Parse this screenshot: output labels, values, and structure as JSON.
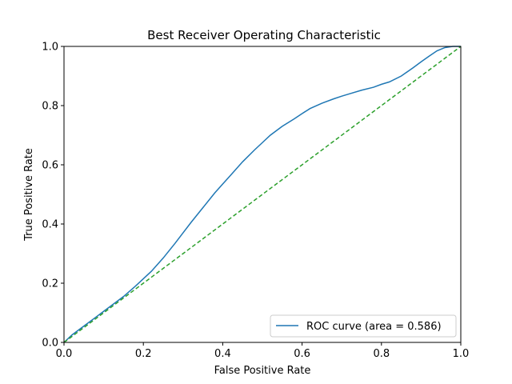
{
  "chart_data": {
    "type": "line",
    "title": "Best Receiver Operating Characteristic",
    "xlabel": "False Positive Rate",
    "ylabel": "True Positive Rate",
    "xlim": [
      0,
      1
    ],
    "ylim": [
      0,
      1
    ],
    "xticks": [
      "0.0",
      "0.2",
      "0.4",
      "0.6",
      "0.8",
      "1.0"
    ],
    "yticks": [
      "0.0",
      "0.2",
      "0.4",
      "0.6",
      "0.8",
      "1.0"
    ],
    "grid": false,
    "legend_placement": "lower-right",
    "series": [
      {
        "name": "ROC curve (area = 0.586)",
        "color": "#1f77b4",
        "style": "solid",
        "x": [
          0.0,
          0.02,
          0.05,
          0.08,
          0.1,
          0.12,
          0.15,
          0.18,
          0.2,
          0.22,
          0.25,
          0.28,
          0.3,
          0.32,
          0.35,
          0.38,
          0.4,
          0.42,
          0.45,
          0.48,
          0.5,
          0.52,
          0.55,
          0.58,
          0.6,
          0.62,
          0.65,
          0.68,
          0.7,
          0.72,
          0.75,
          0.78,
          0.8,
          0.82,
          0.85,
          0.88,
          0.9,
          0.92,
          0.94,
          0.96,
          0.98,
          1.0
        ],
        "y": [
          0.0,
          0.025,
          0.055,
          0.085,
          0.105,
          0.125,
          0.155,
          0.19,
          0.215,
          0.24,
          0.285,
          0.335,
          0.37,
          0.405,
          0.455,
          0.505,
          0.535,
          0.565,
          0.61,
          0.65,
          0.675,
          0.7,
          0.73,
          0.755,
          0.773,
          0.79,
          0.808,
          0.823,
          0.832,
          0.84,
          0.852,
          0.862,
          0.872,
          0.88,
          0.9,
          0.928,
          0.948,
          0.967,
          0.985,
          0.996,
          1.0,
          1.0
        ]
      },
      {
        "name": "",
        "color": "#2ca02c",
        "style": "dashed",
        "x": [
          0,
          1
        ],
        "y": [
          0,
          1
        ]
      }
    ]
  }
}
